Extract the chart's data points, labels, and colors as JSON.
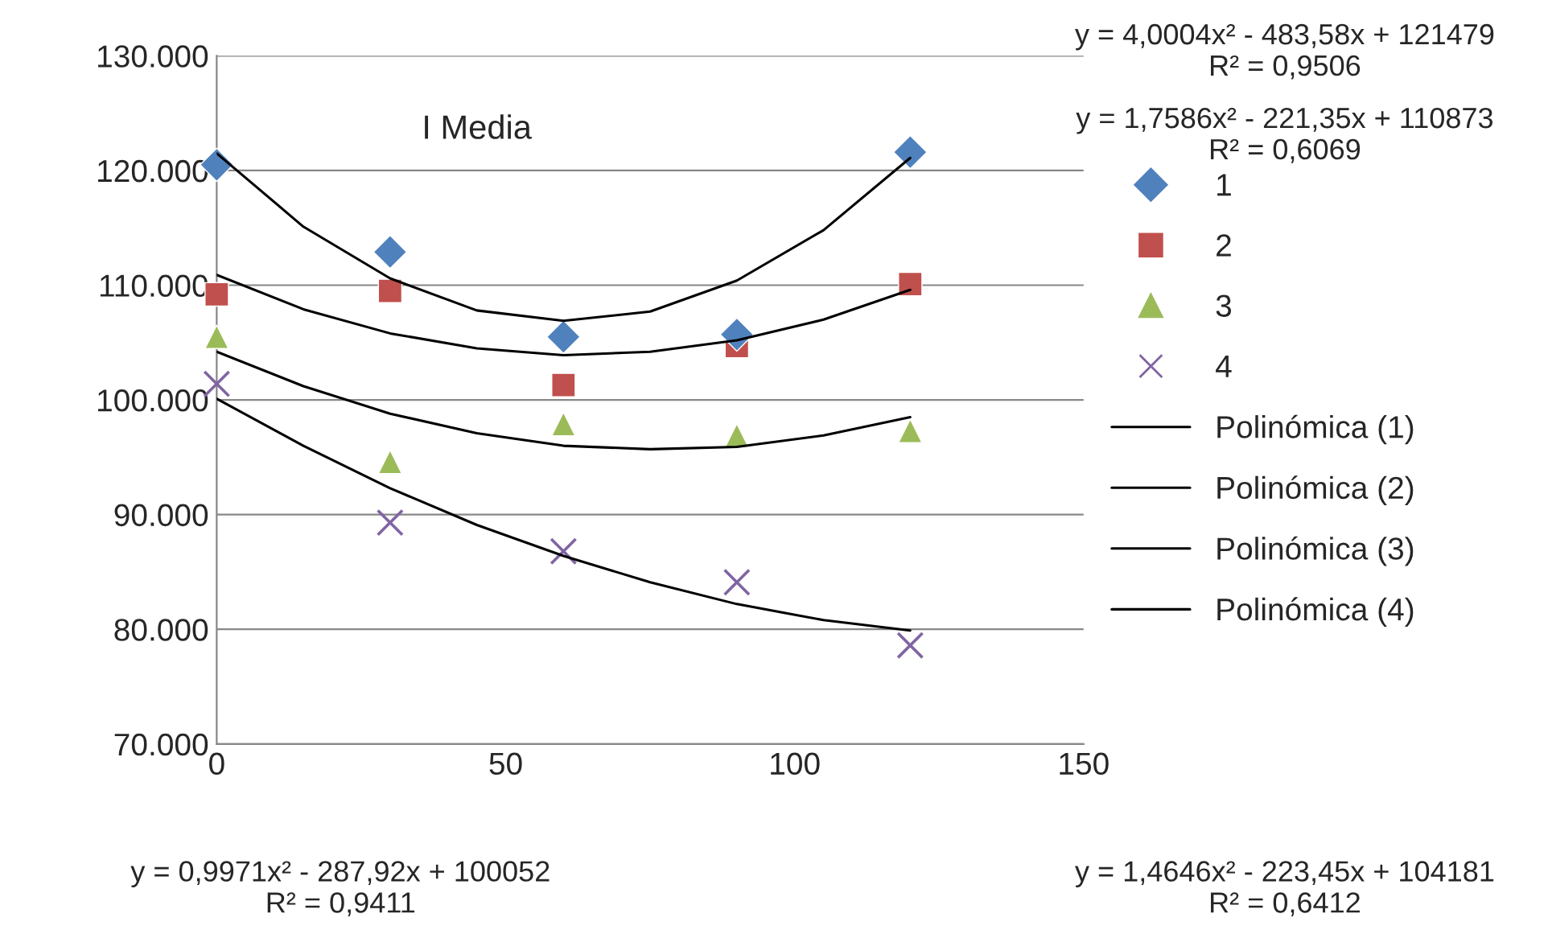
{
  "chart_data": {
    "type": "scatter",
    "title": "I Media",
    "x": [
      0,
      30,
      60,
      90,
      120
    ],
    "series": [
      {
        "name": "1",
        "color": "#4f81bd",
        "marker": "diamond",
        "values": [
          120500,
          112900,
          105500,
          105700,
          121600
        ]
      },
      {
        "name": "2",
        "color": "#c0504d",
        "marker": "square",
        "values": [
          109200,
          109500,
          101300,
          104700,
          110100
        ]
      },
      {
        "name": "3",
        "color": "#9bbb59",
        "marker": "triangle",
        "values": [
          105500,
          94600,
          97900,
          96900,
          97300
        ]
      },
      {
        "name": "4",
        "color": "#8064a2",
        "marker": "cross",
        "values": [
          101400,
          89300,
          86800,
          84100,
          78600
        ]
      },
      {
        "name": "Polinómica (1)",
        "type": "line",
        "color": "#000000",
        "marker": "none",
        "x": [
          0,
          15,
          30,
          45,
          60,
          75,
          90,
          105,
          120
        ],
        "values": [
          121500,
          115100,
          110600,
          107800,
          106900,
          107700,
          110400,
          114800,
          121100
        ]
      },
      {
        "name": "Polinómica (2)",
        "type": "line",
        "color": "#000000",
        "marker": "none",
        "x": [
          0,
          15,
          30,
          45,
          60,
          75,
          90,
          105,
          120
        ],
        "values": [
          110900,
          107900,
          105800,
          104500,
          103900,
          104200,
          105200,
          107000,
          109600
        ]
      },
      {
        "name": "Polinómica (3)",
        "type": "line",
        "color": "#000000",
        "marker": "none",
        "x": [
          0,
          15,
          30,
          45,
          60,
          75,
          90,
          105,
          120
        ],
        "values": [
          104200,
          101200,
          98800,
          97100,
          96000,
          95700,
          95900,
          96900,
          98500
        ]
      },
      {
        "name": "Polinómica (4)",
        "type": "line",
        "color": "#000000",
        "marker": "none",
        "x": [
          0,
          15,
          30,
          45,
          60,
          75,
          90,
          105,
          120
        ],
        "values": [
          100100,
          96000,
          92300,
          89100,
          86400,
          84100,
          82200,
          80800,
          79900
        ]
      }
    ],
    "xlim": [
      0,
      150
    ],
    "xticks": [
      0,
      50,
      100,
      150
    ],
    "ylim": [
      70000,
      130000
    ],
    "yticks": [
      {
        "value": 70000,
        "label": "70.000"
      },
      {
        "value": 80000,
        "label": "80.000"
      },
      {
        "value": 90000,
        "label": "90.000"
      },
      {
        "value": 100000,
        "label": "100.000"
      },
      {
        "value": 110000,
        "label": "110.000"
      },
      {
        "value": 120000,
        "label": "120.000"
      },
      {
        "value": 130000,
        "label": "130.000"
      }
    ],
    "grid": "y",
    "legend": "right",
    "annotations": [
      "y = 4,0004x² - 483,58x + 121479\nR² = 0,9506",
      "y = 1,7586x² - 221,35x + 110873\nR² = 0,6069",
      "y = 0,9971x² - 287,92x + 100052\nR² = 0,9411",
      "y = 1,4646x² - 223,45x + 104181\nR² = 0,6412"
    ]
  }
}
